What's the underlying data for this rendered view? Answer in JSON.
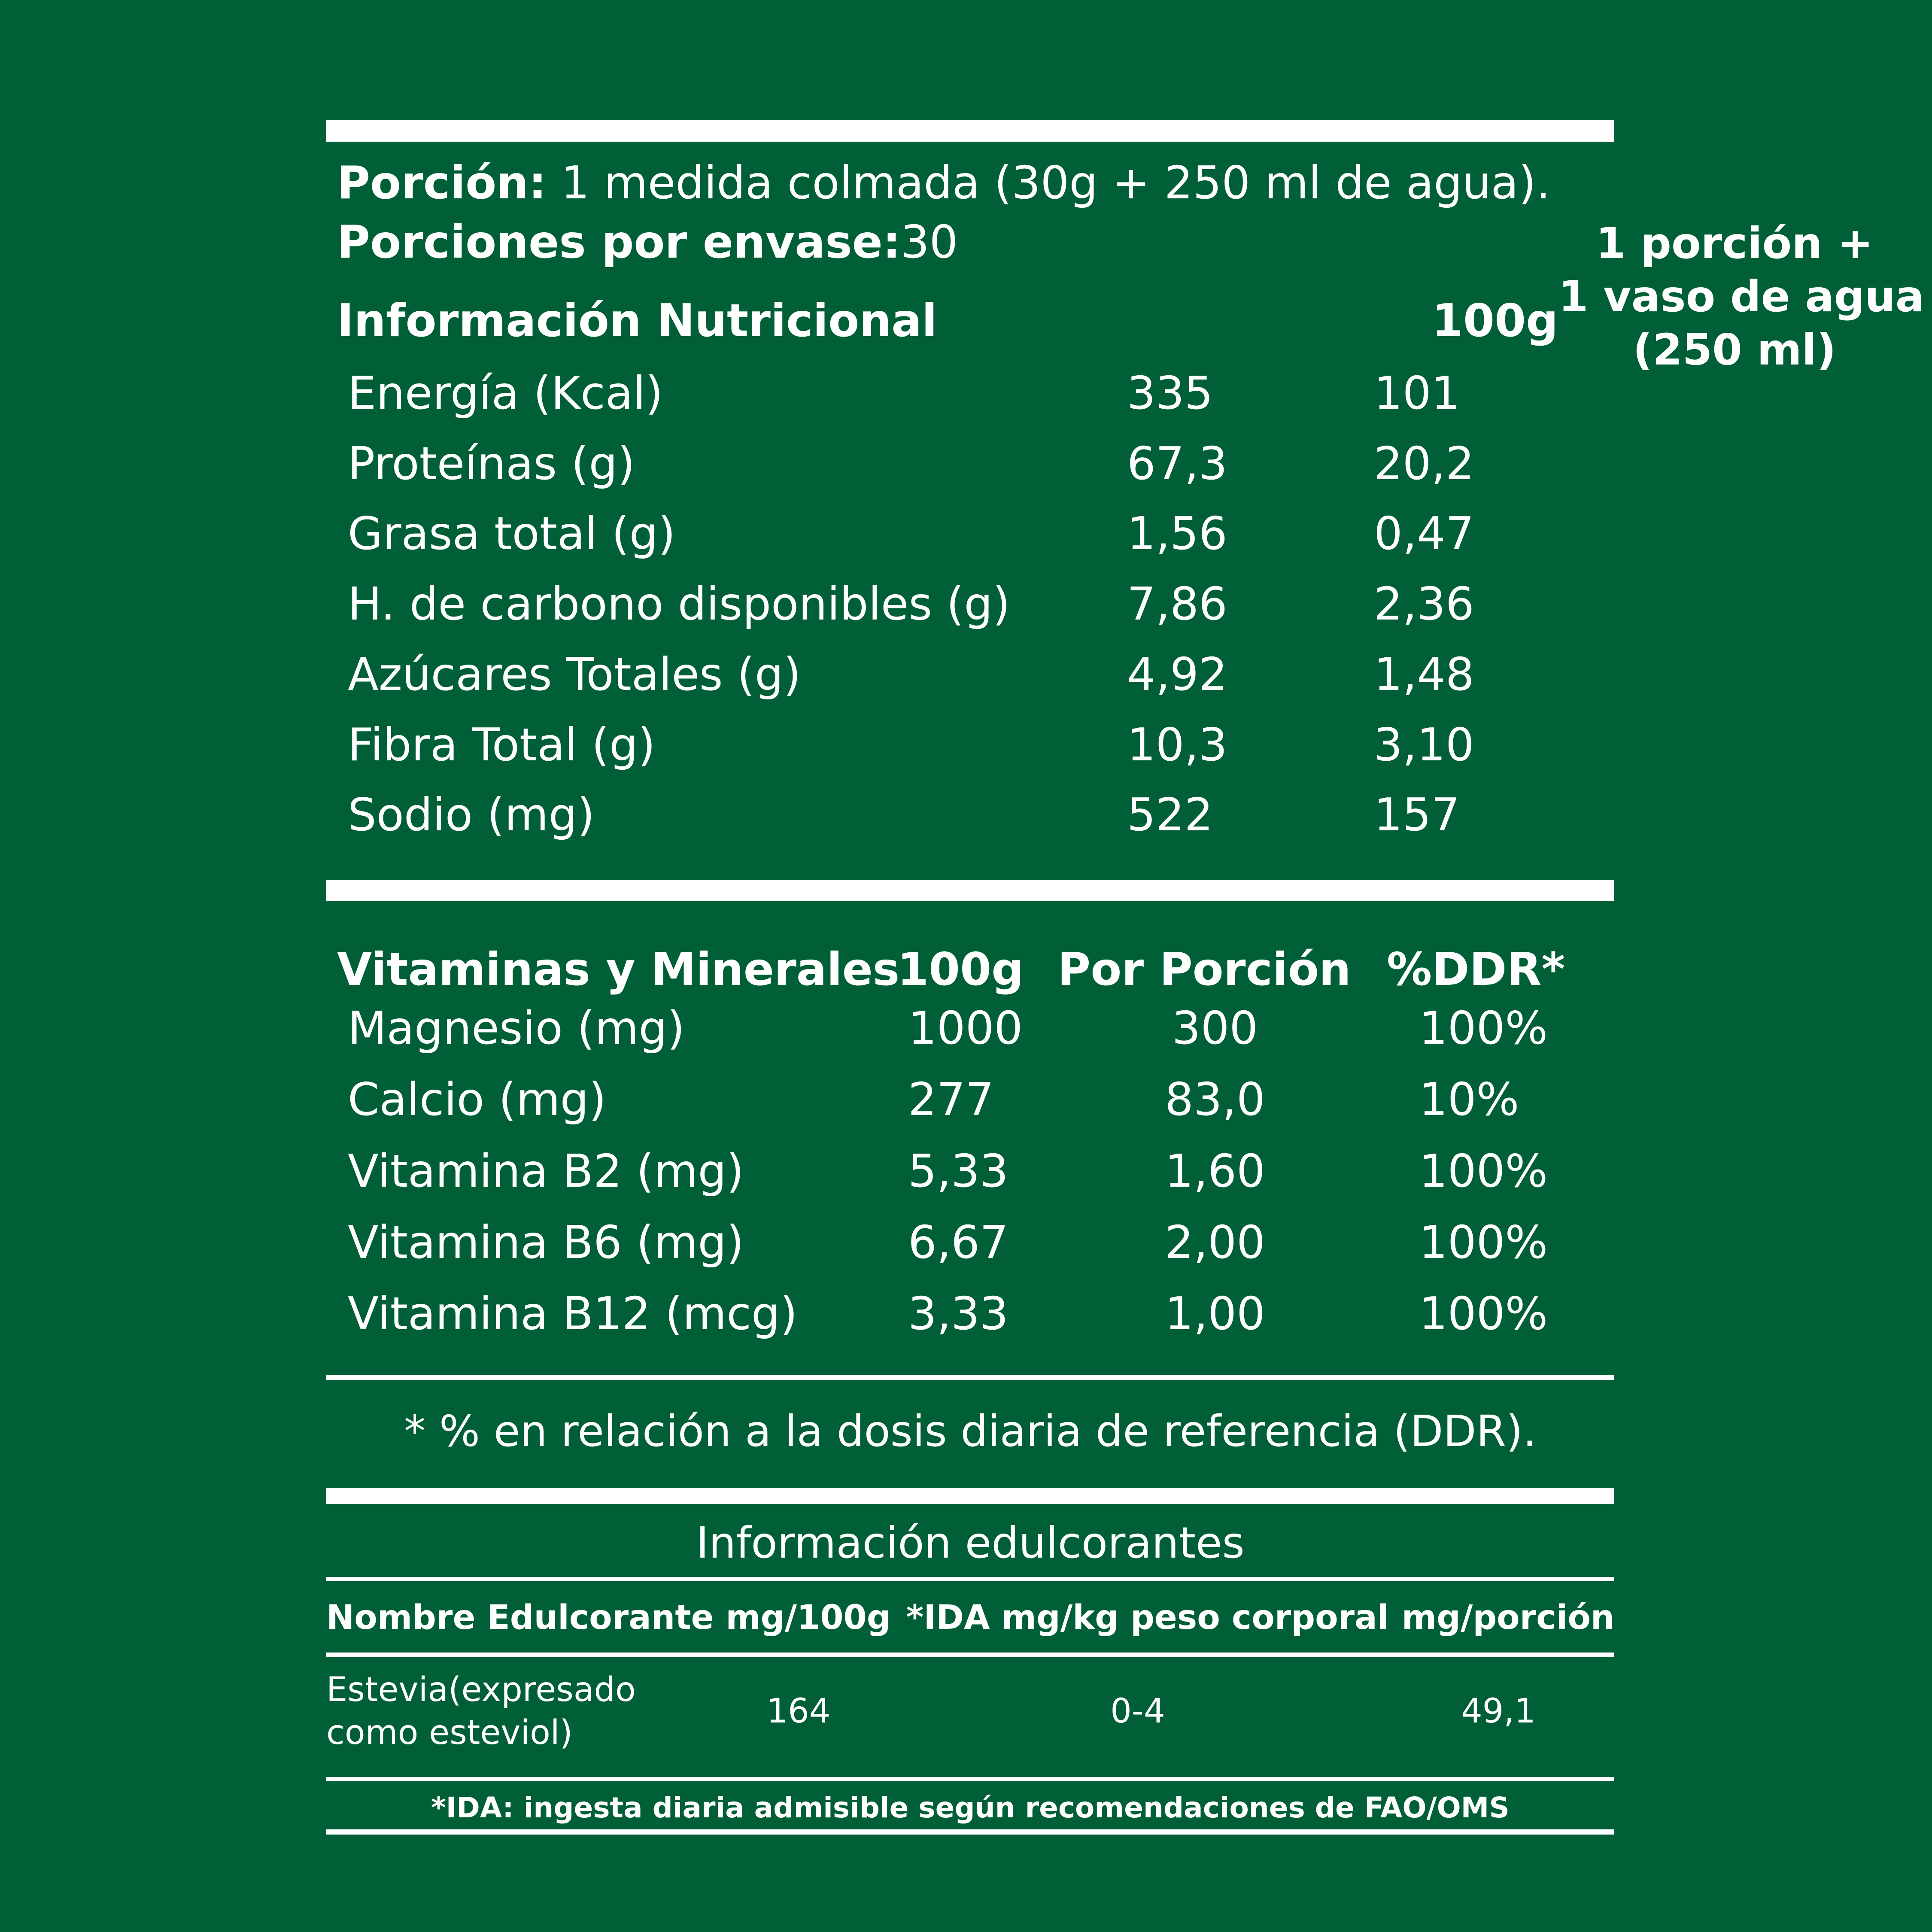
{
  "colors": {
    "background": "#015F37",
    "text": "#FFFFFF"
  },
  "serving": {
    "porcion_label": "Porción:",
    "porcion_value": " 1 medida colmada (30g + 250 ml de agua).",
    "porciones_label": "Porciones por envase:",
    "porciones_value": "30"
  },
  "main_table": {
    "header": {
      "col_label": "Información Nutricional",
      "col_100g": "100g",
      "col_portion_line1": "1 porción +",
      "col_portion_line2": "1 vaso de agua",
      "col_portion_line3": "(250 ml)"
    },
    "rows": [
      {
        "label": "Energía (Kcal)",
        "per100": "335",
        "per_portion": "101"
      },
      {
        "label": "Proteínas (g)",
        "per100": "67,3",
        "per_portion": "20,2"
      },
      {
        "label": "Grasa total (g)",
        "per100": "1,56",
        "per_portion": "0,47"
      },
      {
        "label": "H. de carbono disponibles (g)",
        "per100": "7,86",
        "per_portion": "2,36"
      },
      {
        "label": "Azúcares Totales (g)",
        "per100": "4,92",
        "per_portion": "1,48"
      },
      {
        "label": "Fibra Total (g)",
        "per100": "10,3",
        "per_portion": "3,10"
      },
      {
        "label": "Sodio (mg)",
        "per100": "522",
        "per_portion": "157"
      }
    ]
  },
  "vitamins_table": {
    "header": {
      "col_label": "Vitaminas y Minerales",
      "col_100g": "100g",
      "col_portion": "Por Porción",
      "col_ddr": "%DDR*"
    },
    "rows": [
      {
        "label": "Magnesio (mg)",
        "per100": "1000",
        "per_portion": "300",
        "ddr": "100%"
      },
      {
        "label": "Calcio (mg)",
        "per100": "277",
        "per_portion": "83,0",
        "ddr": "10%"
      },
      {
        "label": "Vitamina B2 (mg)",
        "per100": "5,33",
        "per_portion": "1,60",
        "ddr": "100%"
      },
      {
        "label": "Vitamina B6 (mg)",
        "per100": "6,67",
        "per_portion": "2,00",
        "ddr": "100%"
      },
      {
        "label": "Vitamina B12 (mcg)",
        "per100": "3,33",
        "per_portion": "1,00",
        "ddr": "100%"
      }
    ]
  },
  "ddr_footnote": "* % en relación a la dosis diaria de referencia (DDR).",
  "sweeteners": {
    "title": "Información edulcorantes",
    "headers": [
      "Nombre Edulcorante",
      "mg/100g",
      "*IDA mg/kg peso corporal",
      "mg/porción"
    ],
    "row": {
      "name_line1": "Estevia(expresado",
      "name_line2": "como esteviol)",
      "mg_100g": "164",
      "ida": "0-4",
      "mg_portion": "49,1"
    },
    "footnote": "*IDA: ingesta diaria admisible según recomendaciones de FAO/OMS"
  }
}
